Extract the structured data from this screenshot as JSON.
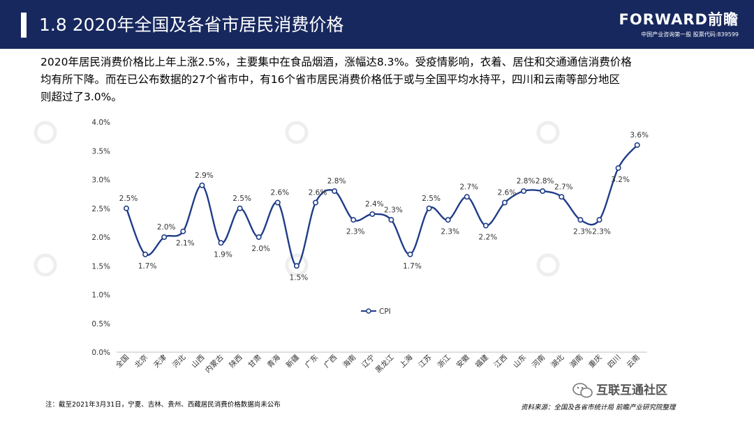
{
  "header": {
    "title": "1.8 2020年全国及各省市居民消费价格",
    "brand_name": "FORWARD前瞻",
    "brand_subtitle": "中国产业咨询第一股 股票代码:839599",
    "bg_color": "#17285e"
  },
  "intro": {
    "lines": [
      "2020年居民消费价格比上年上涨2.5%，主要集中在食品烟酒，涨幅达8.3%。受疫情影响，衣着、居住和交通通信消费价格",
      "均有所下降。而在已公布数据的27个省市中，有16个省市居民消费价格低于或与全国平均水持平，四川和云南等部分地区",
      "则超过了3.0%。"
    ]
  },
  "chart_data": {
    "type": "line",
    "categories": [
      "全国",
      "北京",
      "天津",
      "河北",
      "山西",
      "内蒙古",
      "陕西",
      "甘肃",
      "青海",
      "新疆",
      "广东",
      "广西",
      "海南",
      "辽宁",
      "黑龙江",
      "上海",
      "江苏",
      "浙江",
      "安徽",
      "福建",
      "江西",
      "山东",
      "河南",
      "湖北",
      "湖南",
      "重庆",
      "四川",
      "云南"
    ],
    "series": [
      {
        "name": "CPI",
        "values": [
          2.5,
          1.7,
          2.0,
          2.1,
          2.9,
          1.9,
          2.5,
          2.0,
          2.6,
          1.5,
          2.6,
          2.8,
          2.3,
          2.4,
          2.3,
          1.7,
          2.5,
          2.3,
          2.7,
          2.2,
          2.6,
          2.8,
          2.8,
          2.7,
          2.3,
          2.3,
          3.2,
          3.6
        ]
      }
    ],
    "data_labels": [
      "2.5%",
      "1.7%",
      "2.0%",
      "2.1%",
      "2.9%",
      "1.9%",
      "2.5%",
      "2.0%",
      "2.6%",
      "1.5%",
      "2.6%",
      "2.8%",
      "2.3%",
      "2.4%",
      "2.3%",
      "1.7%",
      "2.5%",
      "2.3%",
      "2.7%",
      "2.2%",
      "2.6%",
      "2.8%",
      "2.8%",
      "2.7%",
      "2.3%",
      "2.3%",
      "3.2%",
      "3.6%"
    ],
    "label_positions": [
      "above",
      "below",
      "above",
      "below",
      "above",
      "below",
      "above",
      "below",
      "above",
      "below",
      "above",
      "above",
      "below",
      "above",
      "above",
      "below",
      "above",
      "below",
      "above",
      "below",
      "above",
      "above",
      "above",
      "above",
      "below",
      "below",
      "below",
      "above"
    ],
    "ylim": [
      0,
      4.0
    ],
    "yticks": [
      "0.0%",
      "0.5%",
      "1.0%",
      "1.5%",
      "2.0%",
      "2.5%",
      "3.0%",
      "3.5%",
      "4.0%"
    ],
    "grid": false,
    "legend": "center",
    "line_color": "#1f3c88"
  },
  "footer": {
    "note": "注：截至2021年3月31日，宁夏、吉林、贵州、西藏居民消费价格数据尚未公布",
    "source": "资料来源：全国及各省市统计局 前瞻产业研究院整理",
    "wechat": "互联互通社区"
  }
}
